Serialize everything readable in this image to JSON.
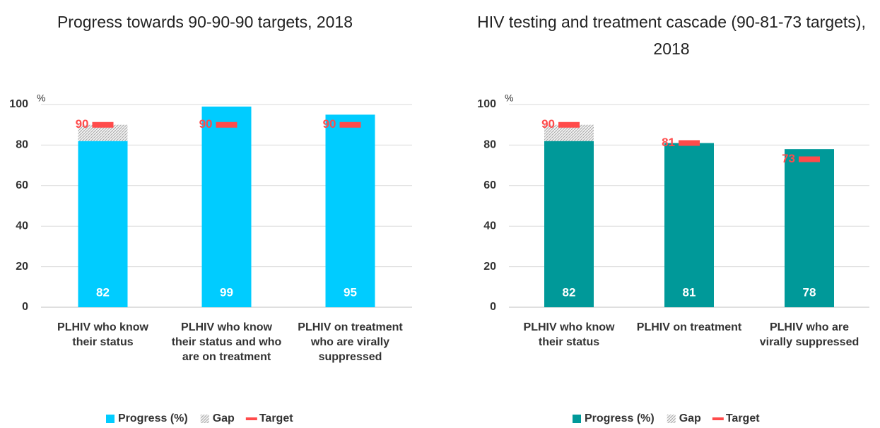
{
  "chart_data": [
    {
      "type": "bar",
      "title": "Progress towards 90-90-90 targets, 2018",
      "y_label": "%",
      "categories": [
        "PLHIV who know their status",
        "PLHIV who know their status and who are on treatment",
        "PLHIV on treatment who are virally suppressed"
      ],
      "series": [
        {
          "name": "Progress (%)",
          "color": "#00ccff",
          "values": [
            82,
            99,
            95
          ]
        },
        {
          "name": "Gap",
          "color": "#bdbdbd",
          "values": [
            8,
            null,
            null
          ]
        },
        {
          "name": "Target",
          "color": "#ff4b4b",
          "values": [
            90,
            90,
            90
          ]
        }
      ],
      "ylim": [
        0,
        100
      ],
      "yticks": [
        0,
        20,
        40,
        60,
        80,
        100
      ],
      "grid": true,
      "legend": "bottom"
    },
    {
      "type": "bar",
      "title": "HIV testing and treatment cascade (90-81-73 targets), 2018",
      "y_label": "%",
      "categories": [
        "PLHIV who know their status",
        "PLHIV on treatment",
        "PLHIV who are virally suppressed"
      ],
      "series": [
        {
          "name": "Progress (%)",
          "color": "#009999",
          "values": [
            82,
            81,
            78
          ]
        },
        {
          "name": "Gap",
          "color": "#bdbdbd",
          "values": [
            8,
            null,
            null
          ]
        },
        {
          "name": "Target",
          "color": "#ff4b4b",
          "values": [
            90,
            81,
            73
          ]
        }
      ],
      "ylim": [
        0,
        100
      ],
      "yticks": [
        0,
        20,
        40,
        60,
        80,
        100
      ],
      "grid": true,
      "legend": "bottom"
    }
  ]
}
